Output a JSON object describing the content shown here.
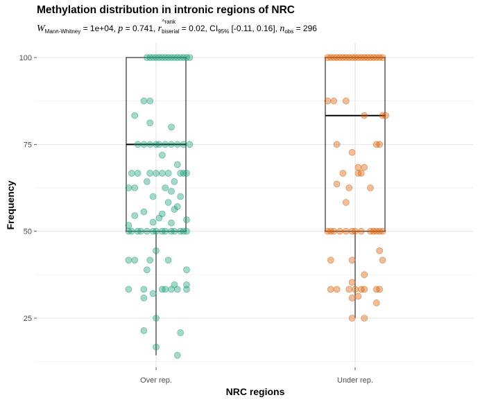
{
  "header": {
    "title": "Methylation distribution in intronic regions of NRC",
    "subtitle": {
      "w_symbol": "W",
      "w_sub": "Mann-Whitney",
      "w_value": " = 1e+04, ",
      "p_symbol": "p",
      "p_value": " = 0.741, ",
      "r_symbol": "r",
      "r_sup": "^rank",
      "r_sub": "biserial",
      "r_value": " = 0.02, ",
      "ci_label": "CI",
      "ci_sub": "95%",
      "ci_value": " [-0.11, 0.16], ",
      "n_symbol": "n",
      "n_sub": "obs",
      "n_value": " = 296"
    }
  },
  "chart_data": {
    "type": "box-jitter",
    "title": "Methylation distribution in intronic regions of NRC",
    "xlabel": "NRC regions",
    "ylabel": "Frequency",
    "categories": [
      "Over rep.",
      "Under rep."
    ],
    "ylim": [
      12,
      103
    ],
    "yticks": [
      25,
      50,
      75,
      100
    ],
    "grid": true,
    "colors": {
      "Over rep.": "#1b9e77",
      "Under rep.": "#d95f02"
    },
    "boxes": [
      {
        "name": "Over rep.",
        "whisker_low": 14.3,
        "q1": 50,
        "median": 75,
        "q3": 100,
        "whisker_high": 100
      },
      {
        "name": "Under rep.",
        "whisker_low": 25,
        "q1": 50,
        "median": 83.3,
        "q3": 100,
        "whisker_high": 100
      }
    ],
    "series": [
      {
        "name": "Over rep.",
        "points": [
          [
            0.97,
            100
          ],
          [
            0.98,
            100
          ],
          [
            0.99,
            100
          ],
          [
            1.0,
            100
          ],
          [
            1.01,
            100
          ],
          [
            1.02,
            100
          ],
          [
            1.03,
            100
          ],
          [
            1.04,
            100
          ],
          [
            1.05,
            100
          ],
          [
            1.06,
            100
          ],
          [
            1.07,
            100
          ],
          [
            1.08,
            100
          ],
          [
            1.09,
            100
          ],
          [
            1.1,
            100
          ],
          [
            1.11,
            100
          ],
          [
            0.96,
            87.5
          ],
          [
            0.98,
            87.5
          ],
          [
            0.93,
            83.3
          ],
          [
            0.98,
            81.2
          ],
          [
            1.05,
            80
          ],
          [
            0.94,
            75
          ],
          [
            0.96,
            75
          ],
          [
            0.98,
            75
          ],
          [
            1.0,
            75
          ],
          [
            1.01,
            75
          ],
          [
            1.03,
            75
          ],
          [
            1.05,
            75
          ],
          [
            1.07,
            75
          ],
          [
            1.09,
            75
          ],
          [
            1.11,
            75
          ],
          [
            1.02,
            71.9
          ],
          [
            1.07,
            69.2
          ],
          [
            0.92,
            66.7
          ],
          [
            0.94,
            66.7
          ],
          [
            0.98,
            66.7
          ],
          [
            1.0,
            66.7
          ],
          [
            1.02,
            66.7
          ],
          [
            1.04,
            66.7
          ],
          [
            1.08,
            66.7
          ],
          [
            1.09,
            66.7
          ],
          [
            1.1,
            66.7
          ],
          [
            0.97,
            64.3
          ],
          [
            1.06,
            64.3
          ],
          [
            0.91,
            62.5
          ],
          [
            0.93,
            62.5
          ],
          [
            1.03,
            62.5
          ],
          [
            1.05,
            61.5
          ],
          [
            0.99,
            60
          ],
          [
            1.08,
            60
          ],
          [
            1.04,
            58.3
          ],
          [
            1.07,
            57.1
          ],
          [
            1.06,
            56.3
          ],
          [
            0.96,
            55.6
          ],
          [
            1.02,
            55
          ],
          [
            0.93,
            54.5
          ],
          [
            1.01,
            53.8
          ],
          [
            1.1,
            53.3
          ],
          [
            0.99,
            52.6
          ],
          [
            1.05,
            52.4
          ],
          [
            0.91,
            51.7
          ],
          [
            0.91,
            50
          ],
          [
            0.92,
            50
          ],
          [
            0.94,
            50
          ],
          [
            0.95,
            50
          ],
          [
            0.97,
            50
          ],
          [
            0.99,
            50
          ],
          [
            1.0,
            50
          ],
          [
            1.02,
            50
          ],
          [
            1.03,
            50
          ],
          [
            1.05,
            50
          ],
          [
            1.06,
            50
          ],
          [
            1.08,
            50
          ],
          [
            1.09,
            50
          ],
          [
            1.1,
            50
          ],
          [
            1.0,
            44.4
          ],
          [
            0.91,
            41.7
          ],
          [
            0.93,
            41.7
          ],
          [
            0.98,
            41.7
          ],
          [
            1.04,
            41.7
          ],
          [
            0.97,
            38.9
          ],
          [
            1.1,
            38.9
          ],
          [
            1.06,
            34.6
          ],
          [
            1.1,
            34.6
          ],
          [
            0.91,
            33.3
          ],
          [
            0.96,
            33.3
          ],
          [
            1.02,
            33.3
          ],
          [
            1.03,
            33.3
          ],
          [
            1.05,
            33.3
          ],
          [
            1.07,
            33.3
          ],
          [
            1.1,
            33.3
          ],
          [
            0.96,
            30.8
          ],
          [
            0.99,
            32.1
          ],
          [
            1.0,
            25
          ],
          [
            0.96,
            21.4
          ],
          [
            1.08,
            20.8
          ],
          [
            1.0,
            16.7
          ],
          [
            1.07,
            14.3
          ]
        ]
      },
      {
        "name": "Under rep.",
        "points": [
          [
            0.91,
            100
          ],
          [
            0.92,
            100
          ],
          [
            0.93,
            100
          ],
          [
            0.94,
            100
          ],
          [
            0.95,
            100
          ],
          [
            0.96,
            100
          ],
          [
            0.97,
            100
          ],
          [
            0.98,
            100
          ],
          [
            0.99,
            100
          ],
          [
            1.0,
            100
          ],
          [
            1.01,
            100
          ],
          [
            1.02,
            100
          ],
          [
            1.03,
            100
          ],
          [
            1.04,
            100
          ],
          [
            1.05,
            100
          ],
          [
            1.06,
            100
          ],
          [
            1.07,
            100
          ],
          [
            1.08,
            100
          ],
          [
            1.09,
            100
          ],
          [
            0.91,
            87.5
          ],
          [
            0.93,
            87.5
          ],
          [
            0.97,
            87.5
          ],
          [
            1.09,
            83.3
          ],
          [
            1.1,
            83.3
          ],
          [
            1.03,
            83.3
          ],
          [
            0.94,
            75
          ],
          [
            1.07,
            75
          ],
          [
            1.08,
            75
          ],
          [
            0.99,
            72.7
          ],
          [
            1.01,
            68.4
          ],
          [
            1.03,
            68.4
          ],
          [
            0.96,
            66.7
          ],
          [
            1.01,
            66.7
          ],
          [
            1.02,
            66.7
          ],
          [
            0.94,
            63.6
          ],
          [
            0.98,
            62.5
          ],
          [
            1.05,
            62.5
          ],
          [
            0.97,
            58.3
          ],
          [
            0.91,
            50
          ],
          [
            0.92,
            50
          ],
          [
            0.93,
            50
          ],
          [
            0.95,
            50
          ],
          [
            0.97,
            50
          ],
          [
            0.99,
            50
          ],
          [
            1.0,
            50
          ],
          [
            1.02,
            50
          ],
          [
            1.05,
            50
          ],
          [
            1.06,
            50
          ],
          [
            1.07,
            50
          ],
          [
            1.08,
            50
          ],
          [
            1.09,
            50
          ],
          [
            1.08,
            44.4
          ],
          [
            1.09,
            41.7
          ],
          [
            0.92,
            41.7
          ],
          [
            0.99,
            41.7
          ],
          [
            1.03,
            37.5
          ],
          [
            0.99,
            35.3
          ],
          [
            0.92,
            33.3
          ],
          [
            0.94,
            33.3
          ],
          [
            0.98,
            33.3
          ],
          [
            1.0,
            33.3
          ],
          [
            1.02,
            33.3
          ],
          [
            1.03,
            33.3
          ],
          [
            1.07,
            33.3
          ],
          [
            1.08,
            33.3
          ],
          [
            1.01,
            31.3
          ],
          [
            0.99,
            30.8
          ],
          [
            1.07,
            29.4
          ],
          [
            0.99,
            25
          ],
          [
            1.03,
            25
          ]
        ]
      }
    ]
  }
}
